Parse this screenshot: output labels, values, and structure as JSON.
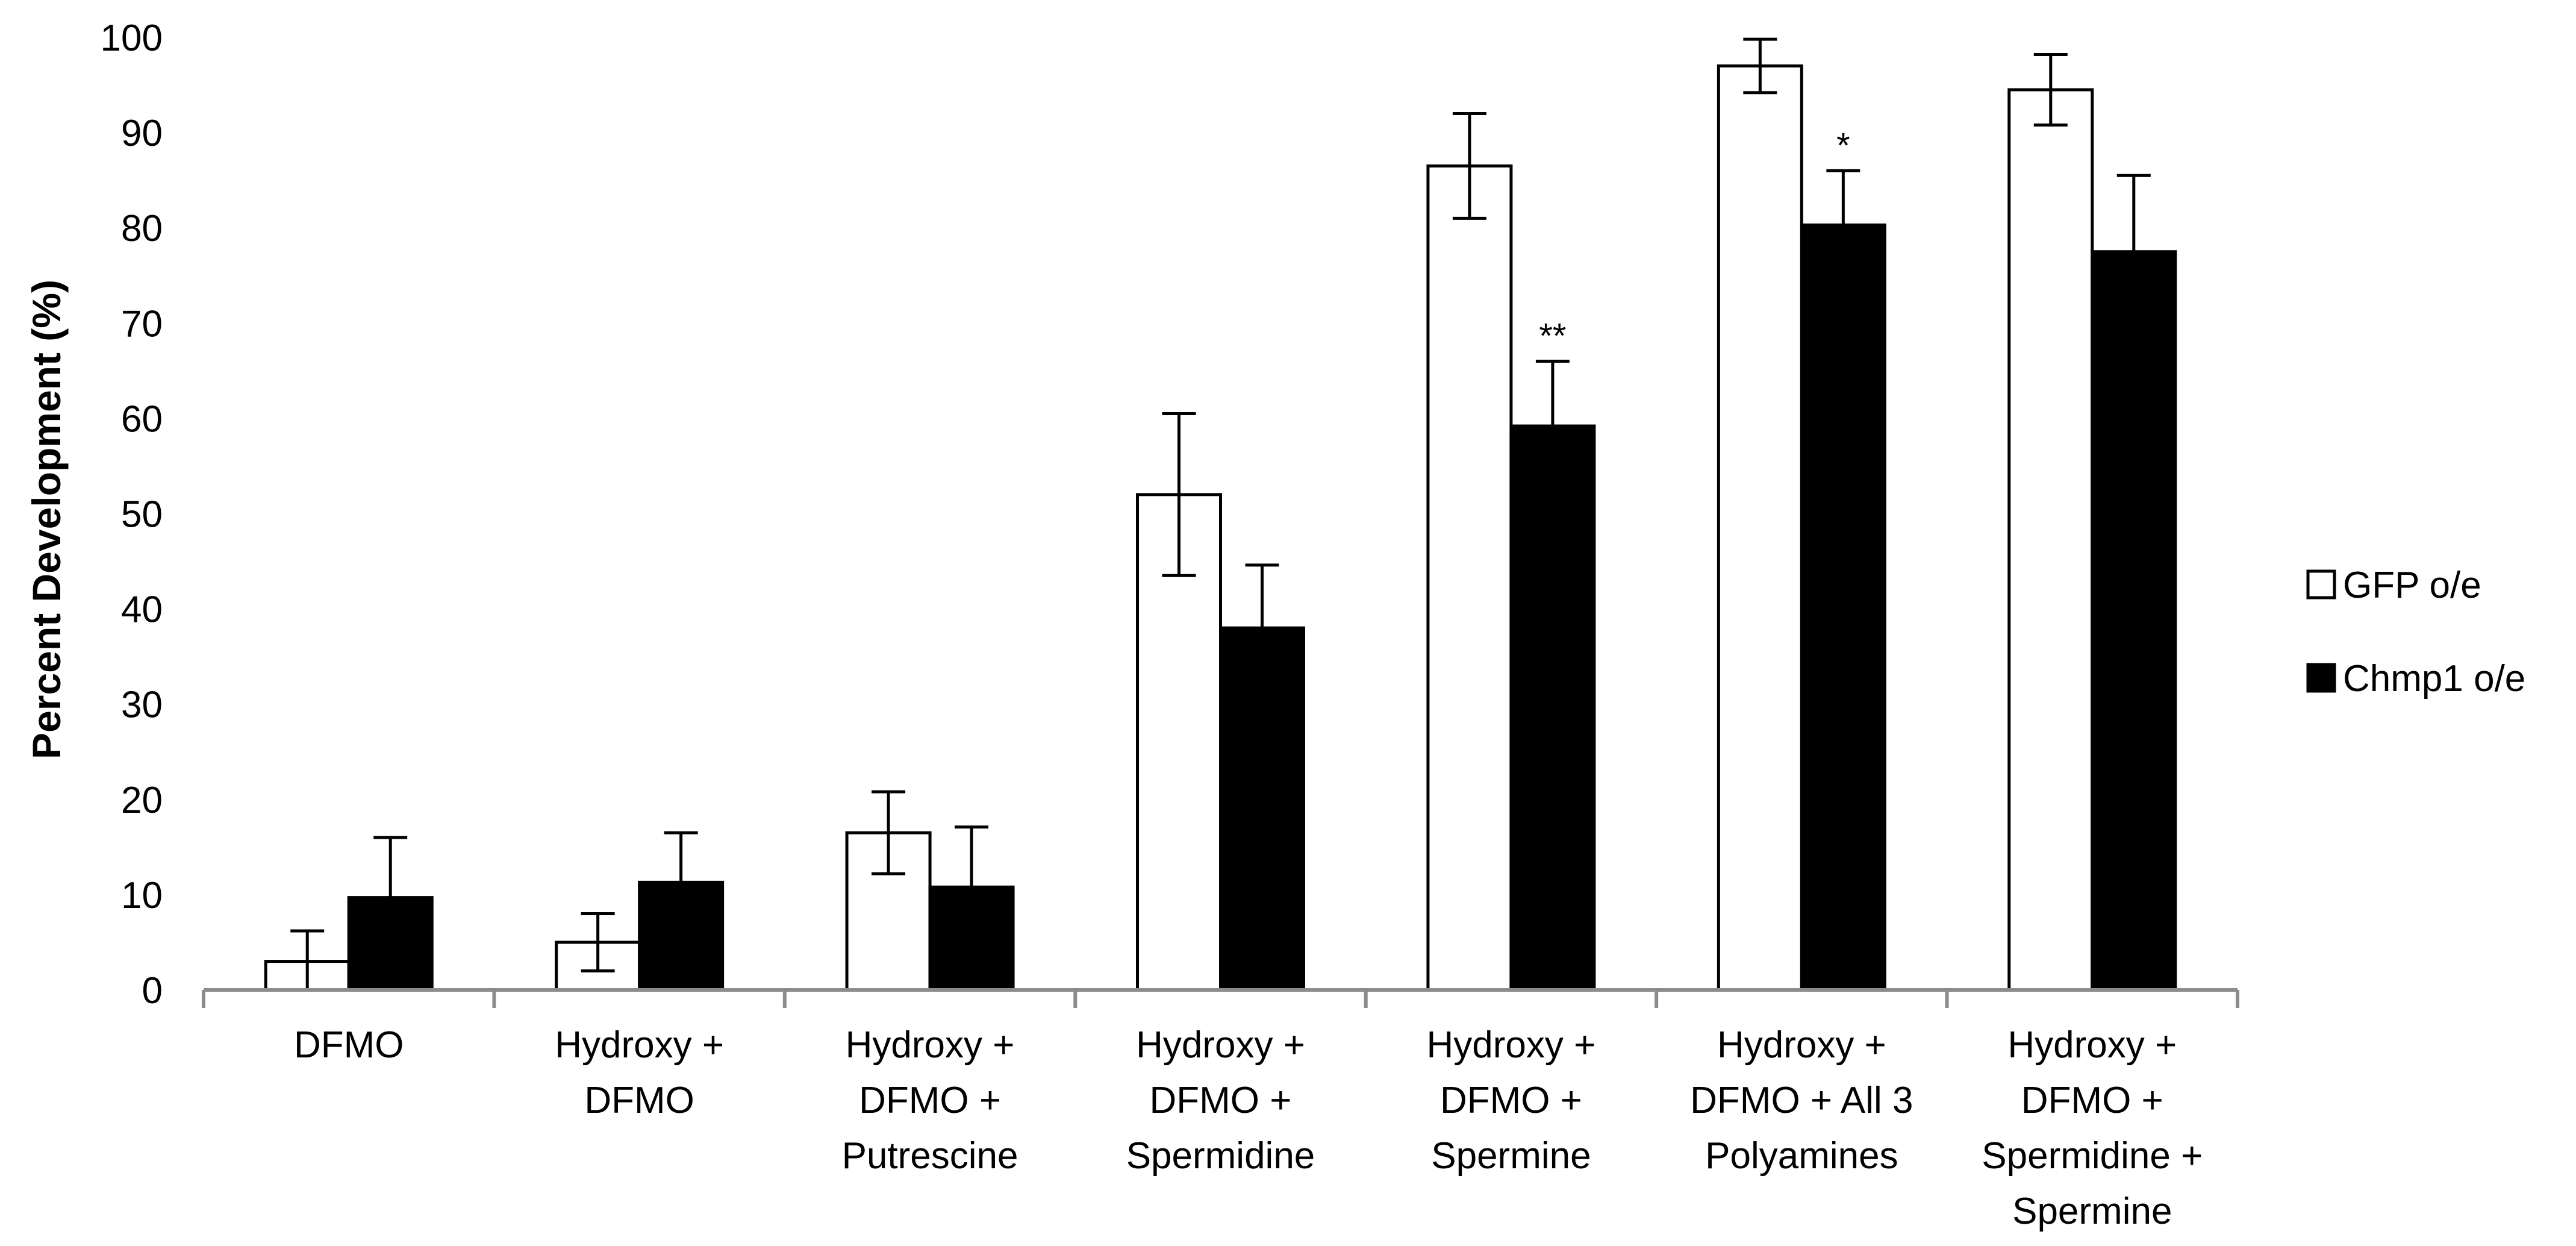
{
  "chart_data": {
    "type": "bar",
    "title": "",
    "xlabel": "",
    "ylabel": "Percent Development (%)",
    "ylim": [
      0,
      100
    ],
    "yticks": [
      "0",
      "10",
      "20",
      "30",
      "40",
      "50",
      "60",
      "70",
      "80",
      "90",
      "100"
    ],
    "grid": false,
    "legend_position": "right",
    "categories": [
      [
        "DFMO"
      ],
      [
        "Hydroxy +",
        "DFMO"
      ],
      [
        "Hydroxy +",
        "DFMO +",
        "Putrescine"
      ],
      [
        "Hydroxy +",
        "DFMO +",
        "Spermidine"
      ],
      [
        "Hydroxy +",
        "DFMO +",
        "Spermine"
      ],
      [
        "Hydroxy +",
        "DFMO + All 3",
        "Polyamines"
      ],
      [
        "Hydroxy +",
        "DFMO +",
        "Spermidine +",
        "Spermine"
      ]
    ],
    "series": [
      {
        "name": "GFP o/e",
        "fill": "#ffffff",
        "stroke": "#000000",
        "values": [
          3,
          5,
          16.5,
          52,
          86.5,
          97,
          94.5
        ],
        "errors": [
          3.2,
          3,
          4.3,
          8.5,
          5.5,
          2.8,
          3.7
        ],
        "significance": [
          "",
          "",
          "",
          "",
          "",
          "",
          ""
        ]
      },
      {
        "name": "Chmp1 o/e",
        "fill": "#000000",
        "stroke": "#000000",
        "values": [
          9.7,
          11.3,
          10.8,
          38,
          59.2,
          80.3,
          77.5
        ],
        "errors": [
          6.3,
          5.2,
          6.3,
          6.6,
          6.8,
          5.7,
          8
        ],
        "significance": [
          "",
          "",
          "",
          "",
          "**",
          "*",
          ""
        ]
      }
    ]
  }
}
